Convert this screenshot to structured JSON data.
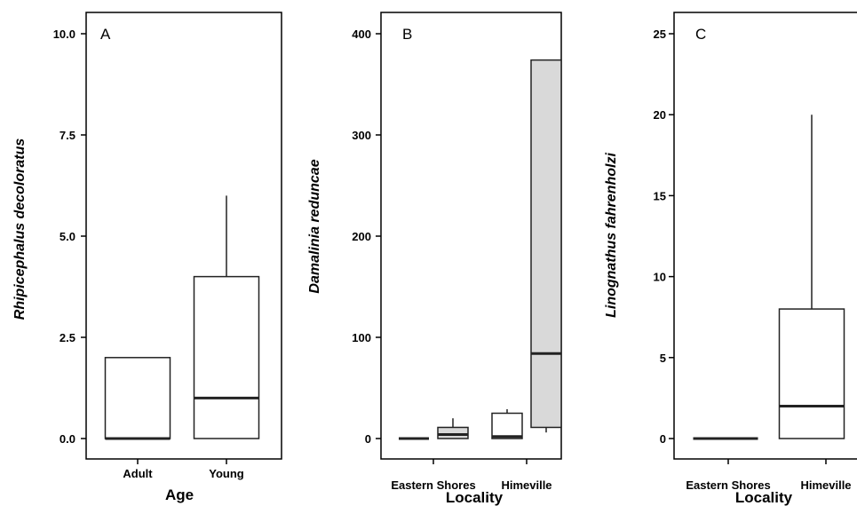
{
  "chart_data": [
    {
      "type": "box",
      "panel_label": "A",
      "xlabel": "Age",
      "ylabel": "Rhipicephalus decoloratus",
      "ylim": [
        0,
        10
      ],
      "yticks": [
        "0.0",
        "2.5",
        "5.0",
        "7.5",
        "10.0"
      ],
      "categories": [
        "Adult",
        "Young"
      ],
      "boxes": [
        {
          "category": "Adult",
          "min": 0,
          "q1": 0,
          "median": 0,
          "q3": 2,
          "max": 2,
          "fill": "#ffffff"
        },
        {
          "category": "Young",
          "min": 0,
          "q1": 0,
          "median": 1,
          "q3": 4,
          "max": 6,
          "fill": "#ffffff"
        }
      ]
    },
    {
      "type": "box",
      "panel_label": "B",
      "xlabel": "Locality",
      "ylabel": "Damalinia reduncae",
      "ylim": [
        0,
        400
      ],
      "yticks": [
        "0",
        "100",
        "200",
        "300",
        "400"
      ],
      "categories": [
        "Eastern Shores",
        "Himeville"
      ],
      "boxes": [
        {
          "category": "Eastern Shores",
          "min": 0,
          "q1": 0,
          "median": 0,
          "q3": 0,
          "max": 0,
          "fill": "#ffffff"
        },
        {
          "category": "Eastern Shores",
          "min": 0,
          "q1": 0,
          "median": 4,
          "q3": 11,
          "max": 20,
          "fill": "#d9d9d9"
        },
        {
          "category": "Himeville",
          "min": 0,
          "q1": 0,
          "median": 2,
          "q3": 25,
          "max": 29,
          "fill": "#ffffff"
        },
        {
          "category": "Himeville",
          "min": 6,
          "q1": 11,
          "median": 84,
          "q3": 374,
          "max": 374,
          "fill": "#d9d9d9"
        }
      ]
    },
    {
      "type": "box",
      "panel_label": "C",
      "xlabel": "Locality",
      "ylabel": "Linognathus fahrenholzi",
      "ylim": [
        0,
        25
      ],
      "yticks": [
        "0",
        "5",
        "10",
        "15",
        "20",
        "25"
      ],
      "categories": [
        "Eastern Shores",
        "Himeville"
      ],
      "boxes": [
        {
          "category": "Eastern Shores",
          "min": 0,
          "q1": 0,
          "median": 0,
          "q3": 0,
          "max": 0,
          "fill": "#ffffff"
        },
        {
          "category": "Himeville",
          "min": 0,
          "q1": 0,
          "median": 2,
          "q3": 8,
          "max": 20,
          "fill": "#ffffff"
        }
      ]
    }
  ]
}
